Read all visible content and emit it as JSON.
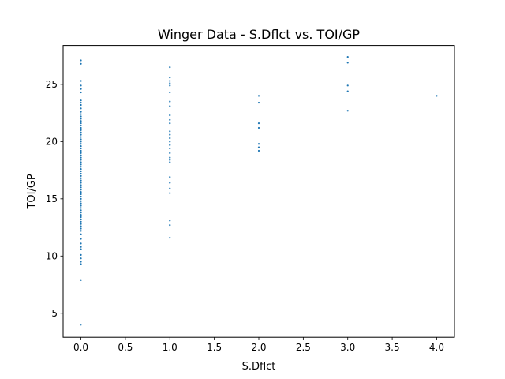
{
  "chart_data": {
    "type": "scatter",
    "title": "Winger Data - S.Dflct vs. TOI/GP",
    "xlabel": "S.Dflct",
    "ylabel": "TOI/GP",
    "xlim": [
      -0.2,
      4.2
    ],
    "ylim": [
      2.9,
      28.4
    ],
    "xticks": [
      "0.0",
      "0.5",
      "1.0",
      "1.5",
      "2.0",
      "2.5",
      "3.0",
      "3.5",
      "4.0"
    ],
    "yticks": [
      "5",
      "10",
      "15",
      "20",
      "25"
    ],
    "grid": false,
    "marker_color": "#1f77b4",
    "series": [
      {
        "name": "",
        "points": [
          [
            0,
            27.1
          ],
          [
            0,
            26.8
          ],
          [
            0,
            25.3
          ],
          [
            0,
            24.9
          ],
          [
            0,
            24.6
          ],
          [
            0,
            24.3
          ],
          [
            0,
            23.6
          ],
          [
            0,
            23.4
          ],
          [
            0,
            23.2
          ],
          [
            0,
            22.9
          ],
          [
            0,
            22.6
          ],
          [
            0,
            22.4
          ],
          [
            0,
            22.2
          ],
          [
            0,
            22.0
          ],
          [
            0,
            21.8
          ],
          [
            0,
            21.6
          ],
          [
            0,
            21.4
          ],
          [
            0,
            21.2
          ],
          [
            0,
            21.0
          ],
          [
            0,
            20.8
          ],
          [
            0,
            20.6
          ],
          [
            0,
            20.4
          ],
          [
            0,
            20.2
          ],
          [
            0,
            20.0
          ],
          [
            0,
            19.8
          ],
          [
            0,
            19.6
          ],
          [
            0,
            19.4
          ],
          [
            0,
            19.2
          ],
          [
            0,
            19.0
          ],
          [
            0,
            18.8
          ],
          [
            0,
            18.6
          ],
          [
            0,
            18.4
          ],
          [
            0,
            18.2
          ],
          [
            0,
            18.0
          ],
          [
            0,
            17.8
          ],
          [
            0,
            17.6
          ],
          [
            0,
            17.4
          ],
          [
            0,
            17.2
          ],
          [
            0,
            17.0
          ],
          [
            0,
            16.8
          ],
          [
            0,
            16.6
          ],
          [
            0,
            16.4
          ],
          [
            0,
            16.2
          ],
          [
            0,
            16.0
          ],
          [
            0,
            15.8
          ],
          [
            0,
            15.6
          ],
          [
            0,
            15.4
          ],
          [
            0,
            15.2
          ],
          [
            0,
            15.0
          ],
          [
            0,
            14.8
          ],
          [
            0,
            14.6
          ],
          [
            0,
            14.4
          ],
          [
            0,
            14.2
          ],
          [
            0,
            14.0
          ],
          [
            0,
            13.8
          ],
          [
            0,
            13.6
          ],
          [
            0,
            13.4
          ],
          [
            0,
            13.2
          ],
          [
            0,
            13.0
          ],
          [
            0,
            12.8
          ],
          [
            0,
            12.6
          ],
          [
            0,
            12.4
          ],
          [
            0,
            12.2
          ],
          [
            0,
            11.9
          ],
          [
            0,
            11.5
          ],
          [
            0,
            11.1
          ],
          [
            0,
            10.8
          ],
          [
            0,
            10.6
          ],
          [
            0,
            10.1
          ],
          [
            0,
            9.8
          ],
          [
            0,
            9.5
          ],
          [
            0,
            9.3
          ],
          [
            0,
            7.9
          ],
          [
            0,
            4.0
          ],
          [
            1,
            26.5
          ],
          [
            1,
            25.6
          ],
          [
            1,
            25.3
          ],
          [
            1,
            25.1
          ],
          [
            1,
            24.9
          ],
          [
            1,
            24.3
          ],
          [
            1,
            23.5
          ],
          [
            1,
            23.1
          ],
          [
            1,
            22.3
          ],
          [
            1,
            21.9
          ],
          [
            1,
            21.6
          ],
          [
            1,
            20.9
          ],
          [
            1,
            20.6
          ],
          [
            1,
            20.3
          ],
          [
            1,
            20.0
          ],
          [
            1,
            19.7
          ],
          [
            1,
            19.4
          ],
          [
            1,
            19.0
          ],
          [
            1,
            18.6
          ],
          [
            1,
            18.4
          ],
          [
            1,
            18.2
          ],
          [
            1,
            16.9
          ],
          [
            1,
            16.4
          ],
          [
            1,
            15.9
          ],
          [
            1,
            15.5
          ],
          [
            1,
            13.1
          ],
          [
            1,
            12.7
          ],
          [
            1,
            11.6
          ],
          [
            2,
            24.0
          ],
          [
            2,
            23.4
          ],
          [
            2,
            21.6
          ],
          [
            2,
            21.2
          ],
          [
            2,
            19.8
          ],
          [
            2,
            19.5
          ],
          [
            2,
            19.2
          ],
          [
            3,
            27.4
          ],
          [
            3,
            26.9
          ],
          [
            3,
            24.9
          ],
          [
            3,
            24.4
          ],
          [
            3,
            22.7
          ],
          [
            4,
            24.0
          ]
        ]
      }
    ]
  }
}
